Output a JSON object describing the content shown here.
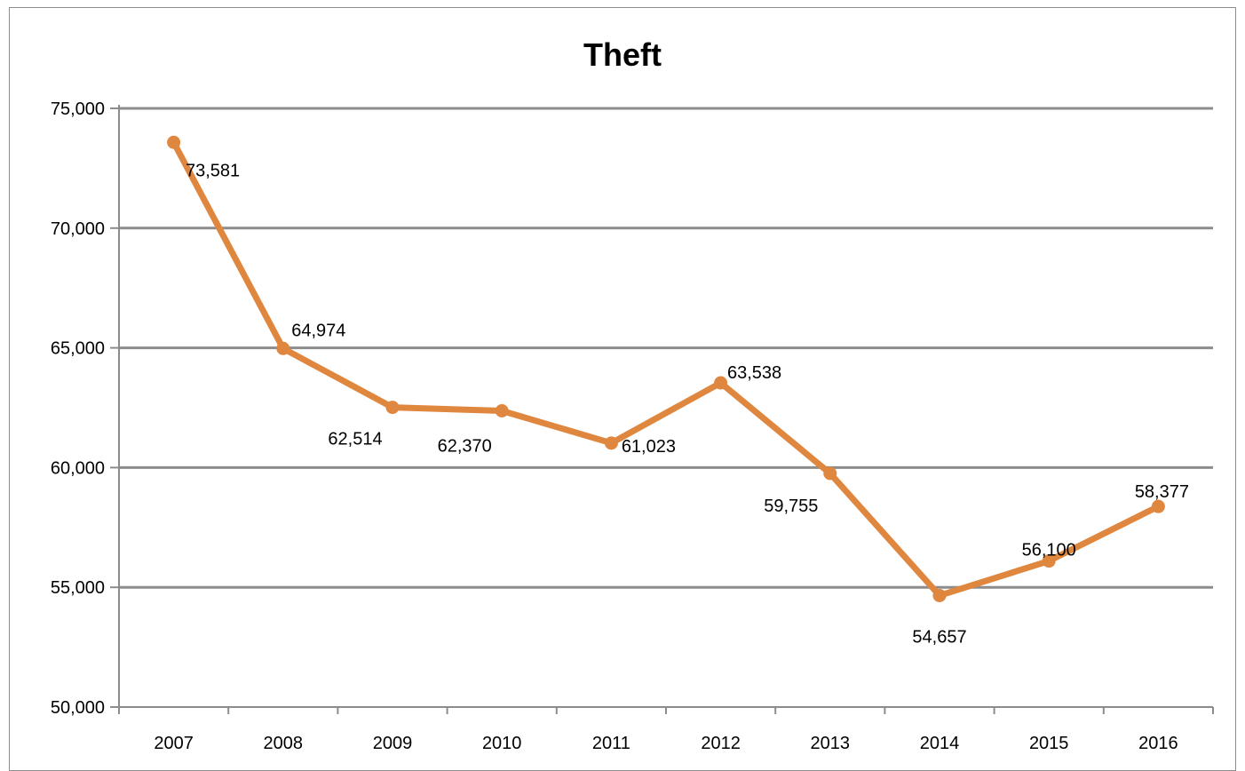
{
  "chart_data": {
    "type": "line",
    "title": "Theft",
    "xlabel": "",
    "ylabel": "",
    "categories": [
      "2007",
      "2008",
      "2009",
      "2010",
      "2011",
      "2012",
      "2013",
      "2014",
      "2015",
      "2016"
    ],
    "series": [
      {
        "values": [
          73581,
          64974,
          62514,
          62370,
          61023,
          63538,
          59755,
          54657,
          56100,
          58377
        ],
        "labels": [
          "73,581",
          "64,974",
          "62,514",
          "62,370",
          "61,023",
          "63,538",
          "59,755",
          "54,657",
          "56,100",
          "58,377"
        ],
        "color": "#e0873f"
      }
    ],
    "ylim": [
      50000,
      75000
    ],
    "yticks": [
      50000,
      55000,
      60000,
      65000,
      70000,
      75000
    ],
    "ytick_labels": [
      "50,000",
      "55,000",
      "60,000",
      "65,000",
      "70,000",
      "75,000"
    ],
    "grid": true,
    "legend": "none",
    "colors": {
      "line": "#e0873f",
      "grid": "#8c8c8c",
      "axis": "#8c8c8c"
    }
  }
}
